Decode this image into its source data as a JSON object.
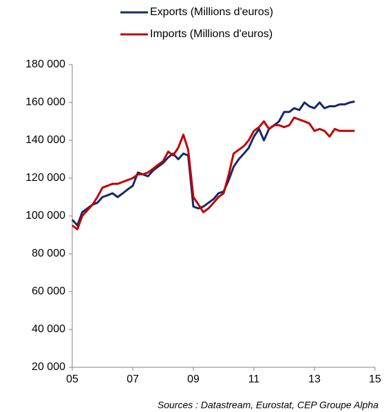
{
  "chart_data": {
    "type": "line",
    "source": "Sources : Datastream, Eurostat, CEP Groupe Alpha",
    "x": [
      2005,
      2005.17,
      2005.33,
      2005.5,
      2005.67,
      2005.83,
      2006,
      2006.17,
      2006.33,
      2006.5,
      2006.67,
      2006.83,
      2007,
      2007.17,
      2007.33,
      2007.5,
      2007.67,
      2007.83,
      2008,
      2008.17,
      2008.33,
      2008.5,
      2008.67,
      2008.83,
      2009,
      2009.17,
      2009.33,
      2009.5,
      2009.67,
      2009.83,
      2010,
      2010.17,
      2010.33,
      2010.5,
      2010.67,
      2010.83,
      2011,
      2011.17,
      2011.33,
      2011.5,
      2011.67,
      2011.83,
      2012,
      2012.17,
      2012.33,
      2012.5,
      2012.67,
      2012.83,
      2013,
      2013.17,
      2013.33,
      2013.5,
      2013.67,
      2013.83,
      2014,
      2014.17,
      2014.33
    ],
    "series": [
      {
        "name": "Exports (Millions d'euros)",
        "color": "#13296b",
        "values": [
          98000,
          95000,
          102000,
          104000,
          106000,
          107000,
          110000,
          111000,
          112000,
          110000,
          112000,
          114000,
          116000,
          123000,
          122000,
          121000,
          124000,
          126000,
          128000,
          131000,
          133000,
          130000,
          133000,
          132000,
          105000,
          104000,
          105000,
          107000,
          109000,
          112000,
          113000,
          119000,
          126000,
          130000,
          133000,
          136000,
          142000,
          146000,
          140000,
          146000,
          148000,
          150000,
          155000,
          155000,
          157000,
          156000,
          160000,
          158000,
          157000,
          160000,
          157000,
          158000,
          158000,
          159000,
          159000,
          160000,
          160500
        ]
      },
      {
        "name": "Imports (Millions d'euros)",
        "color": "#c00000",
        "values": [
          95000,
          93000,
          100000,
          103000,
          106000,
          110000,
          115000,
          116000,
          117000,
          117000,
          118000,
          119000,
          120000,
          122000,
          122000,
          123000,
          125000,
          127000,
          129000,
          134000,
          132000,
          136000,
          143000,
          135000,
          110000,
          106000,
          102000,
          104000,
          107000,
          110000,
          112000,
          122000,
          133000,
          135000,
          137000,
          140000,
          145000,
          147000,
          150000,
          146000,
          148000,
          148000,
          147000,
          148000,
          152000,
          151000,
          150000,
          149000,
          145000,
          146000,
          145000,
          142000,
          146000,
          145000,
          145000,
          145000,
          145000
        ]
      }
    ],
    "xlim": [
      2005,
      2015
    ],
    "xticks": [
      {
        "value": 2005,
        "label": "05"
      },
      {
        "value": 2007,
        "label": "07"
      },
      {
        "value": 2009,
        "label": "09"
      },
      {
        "value": 2011,
        "label": "11"
      },
      {
        "value": 2013,
        "label": "13"
      },
      {
        "value": 2015,
        "label": "15"
      }
    ],
    "ylim": [
      20000,
      180000
    ],
    "yticks": [
      {
        "value": 20000,
        "label": "20 000"
      },
      {
        "value": 40000,
        "label": "40 000"
      },
      {
        "value": 60000,
        "label": "60 000"
      },
      {
        "value": 80000,
        "label": "80 000"
      },
      {
        "value": 100000,
        "label": "100 000"
      },
      {
        "value": 120000,
        "label": "120 000"
      },
      {
        "value": 140000,
        "label": "140 000"
      },
      {
        "value": 160000,
        "label": "160 000"
      },
      {
        "value": 180000,
        "label": "180 000"
      }
    ],
    "grid": false
  }
}
